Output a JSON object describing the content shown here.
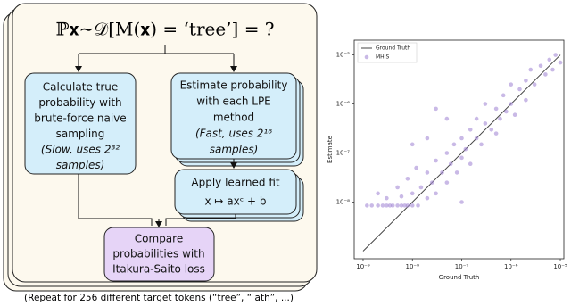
{
  "diagram": {
    "formula": "ℙ𝐱∼𝒟[M(𝐱) = ‘tree’] = ?",
    "naive_box": {
      "lines": [
        "Calculate true",
        "probability with",
        "brute-force naive",
        "sampling"
      ],
      "note": [
        "(Slow, uses 2³²",
        "samples)"
      ]
    },
    "lpe_box": {
      "lines": [
        "Estimate probability",
        "with each LPE",
        "method"
      ],
      "note": [
        "(Fast, uses 2¹⁶",
        "samples)"
      ]
    },
    "fit_box": {
      "lines": [
        "Apply learned fit",
        "x ↦ axᶜ + b"
      ]
    },
    "compare_box": {
      "lines": [
        "Compare",
        "probabilities with",
        "Itakura-Saito loss"
      ]
    },
    "caption": "(Repeat for 256 different target tokens (“tree”, “ ath”, ...)"
  },
  "chart_data": {
    "type": "scatter",
    "xlabel": "Ground Truth",
    "ylabel": "Estimate",
    "log_scale": true,
    "legend": "upper left",
    "xlim": [
      6.6e-10,
      1.18e-05
    ],
    "ylim": [
      7e-10,
      2e-05
    ],
    "xticks": [
      {
        "value": 1e-09,
        "label": "10⁻⁹"
      },
      {
        "value": 1e-08,
        "label": "10⁻⁸"
      },
      {
        "value": 1e-07,
        "label": "10⁻⁷"
      },
      {
        "value": 1e-06,
        "label": "10⁻⁶"
      },
      {
        "value": 1e-05,
        "label": "10⁻⁵"
      }
    ],
    "yticks": [
      {
        "value": 1e-08,
        "label": "10⁻⁸"
      },
      {
        "value": 1e-07,
        "label": "10⁻⁷"
      },
      {
        "value": 1e-06,
        "label": "10⁻⁶"
      },
      {
        "value": 1e-05,
        "label": "10⁻⁵"
      }
    ],
    "series": [
      {
        "name": "Ground Truth",
        "kind": "line",
        "color": "#444444",
        "x": [
          1e-09,
          1e-05
        ],
        "values": [
          1e-09,
          1e-05
        ]
      },
      {
        "name": "MHIS",
        "kind": "scatter",
        "color": "#a58bd6",
        "x": [
          1.2e-09,
          1.5e-09,
          2e-09,
          2.5e-09,
          3e-09,
          3.5e-09,
          4e-09,
          5e-09,
          6e-09,
          7e-09,
          8e-09,
          1e-08,
          1.3e-08,
          2e-09,
          3e-09,
          5e-09,
          6e-09,
          8e-09,
          1e-08,
          1.2e-08,
          1.5e-08,
          2e-08,
          2e-08,
          2.5e-08,
          3e-08,
          3e-08,
          4e-08,
          5e-08,
          5e-08,
          6e-08,
          7e-08,
          8e-08,
          1e-07,
          1e-07,
          1.2e-07,
          1.5e-07,
          1.5e-07,
          2e-07,
          2e-07,
          2.5e-07,
          3e-07,
          3e-07,
          4e-07,
          5e-07,
          5e-07,
          6e-07,
          7e-07,
          8e-07,
          1e-06,
          1e-06,
          1.2e-06,
          1.5e-06,
          2e-06,
          2e-06,
          2.5e-06,
          3e-06,
          4e-06,
          5e-06,
          6e-06,
          7e-06,
          8e-06,
          1e-05,
          3e-08,
          5e-08,
          1e-08,
          2e-08,
          1e-07
        ],
        "values": [
          8.5e-09,
          8.5e-09,
          8.5e-09,
          8.5e-09,
          8.5e-09,
          8.5e-09,
          8.5e-09,
          8.5e-09,
          8.5e-09,
          8.5e-09,
          8.5e-09,
          8.5e-09,
          8.5e-09,
          1.5e-08,
          1.2e-08,
          2e-08,
          1.3e-08,
          3e-08,
          1.5e-08,
          5e-08,
          2e-08,
          1.2e-08,
          4e-08,
          2.5e-08,
          7e-08,
          1.5e-08,
          4e-08,
          1e-07,
          2.5e-08,
          6e-08,
          1.5e-07,
          4e-08,
          8e-08,
          2e-07,
          1.2e-07,
          3e-07,
          6e-08,
          2e-07,
          5e-07,
          1.5e-07,
          4e-07,
          1e-06,
          3e-07,
          8e-07,
          2.5e-07,
          5e-07,
          1.5e-06,
          7e-07,
          1e-06,
          2.5e-06,
          6e-07,
          2e-06,
          3e-06,
          1.2e-06,
          5e-06,
          2.5e-06,
          6e-06,
          4e-06,
          8e-06,
          5e-06,
          1e-05,
          7e-06,
          8e-07,
          5e-07,
          1.5e-07,
          2e-07,
          1e-08
        ]
      }
    ]
  }
}
